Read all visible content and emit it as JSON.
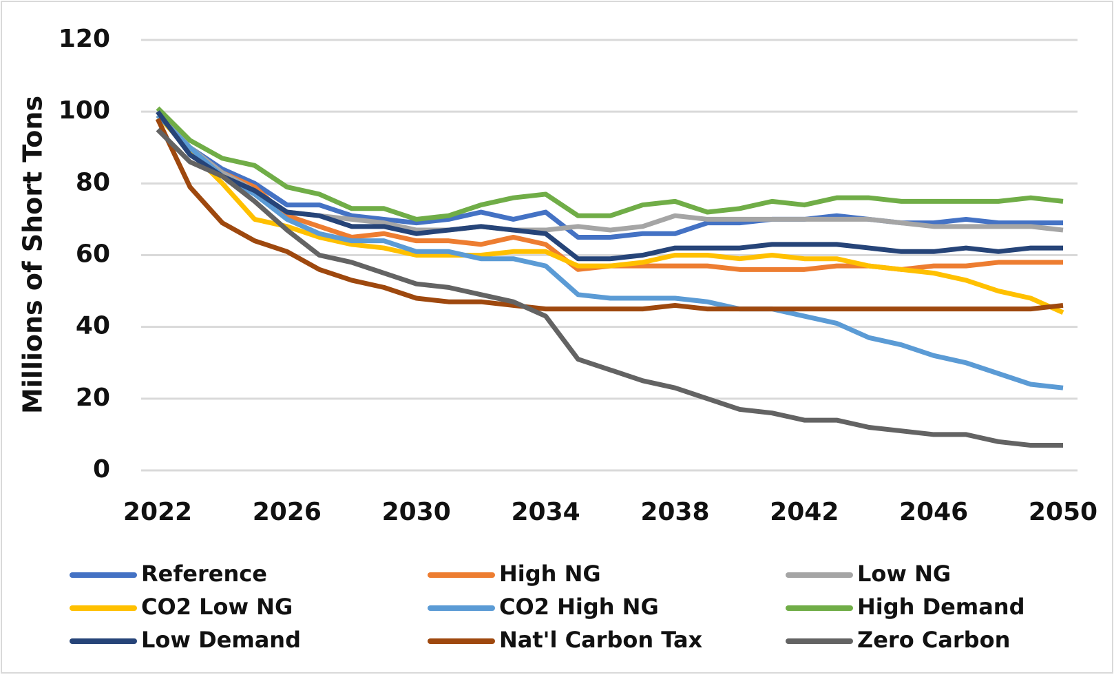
{
  "chart_data": {
    "type": "line",
    "y_label": "Millions of Short Tons",
    "x": [
      2022,
      2023,
      2024,
      2025,
      2026,
      2027,
      2028,
      2029,
      2030,
      2031,
      2032,
      2033,
      2034,
      2035,
      2036,
      2037,
      2038,
      2039,
      2040,
      2041,
      2042,
      2043,
      2044,
      2045,
      2046,
      2047,
      2048,
      2049,
      2050
    ],
    "xlim": [
      2022,
      2050
    ],
    "xticks": [
      2022,
      2026,
      2030,
      2034,
      2038,
      2042,
      2046,
      2050
    ],
    "ylim": [
      0,
      120
    ],
    "yticks": [
      0,
      20,
      40,
      60,
      80,
      100,
      120
    ],
    "grid": true,
    "legend": "bottom",
    "series": [
      {
        "name": "Reference",
        "color": "#4472c4",
        "values": [
          100,
          90,
          84,
          80,
          74,
          74,
          71,
          70,
          69,
          70,
          72,
          70,
          72,
          65,
          65,
          66,
          66,
          69,
          69,
          70,
          70,
          71,
          70,
          69,
          69,
          70,
          69,
          69,
          69
        ]
      },
      {
        "name": "High NG",
        "color": "#ed7d31",
        "values": [
          99,
          90,
          83,
          79,
          71,
          68,
          65,
          66,
          64,
          64,
          63,
          65,
          63,
          56,
          57,
          57,
          57,
          57,
          56,
          56,
          56,
          57,
          57,
          56,
          57,
          57,
          58,
          58,
          58
        ]
      },
      {
        "name": "Low NG",
        "color": "#a5a5a5",
        "values": [
          100,
          90,
          83,
          78,
          72,
          71,
          70,
          69,
          67,
          67,
          68,
          67,
          67,
          68,
          67,
          68,
          71,
          70,
          70,
          70,
          70,
          70,
          70,
          69,
          68,
          68,
          68,
          68,
          67
        ]
      },
      {
        "name": "CO2 Low NG",
        "color": "#ffc000",
        "values": [
          99,
          89,
          80,
          70,
          68,
          65,
          63,
          62,
          60,
          60,
          60,
          61,
          61,
          57,
          57,
          58,
          60,
          60,
          59,
          60,
          59,
          59,
          57,
          56,
          55,
          53,
          50,
          48,
          44
        ]
      },
      {
        "name": "CO2 High NG",
        "color": "#5b9bd5",
        "values": [
          99,
          90,
          82,
          77,
          70,
          66,
          64,
          64,
          61,
          61,
          59,
          59,
          57,
          49,
          48,
          48,
          48,
          47,
          45,
          45,
          43,
          41,
          37,
          35,
          32,
          30,
          27,
          24,
          23
        ]
      },
      {
        "name": "High Demand",
        "color": "#70ad47",
        "values": [
          101,
          92,
          87,
          85,
          79,
          77,
          73,
          73,
          70,
          71,
          74,
          76,
          77,
          71,
          71,
          74,
          75,
          72,
          73,
          75,
          74,
          76,
          76,
          75,
          75,
          75,
          75,
          76,
          75
        ]
      },
      {
        "name": "Low Demand",
        "color": "#264478",
        "values": [
          100,
          88,
          82,
          78,
          72,
          71,
          68,
          68,
          66,
          67,
          68,
          67,
          66,
          59,
          59,
          60,
          62,
          62,
          62,
          63,
          63,
          63,
          62,
          61,
          61,
          62,
          61,
          62,
          62
        ]
      },
      {
        "name": "Nat'l Carbon Tax",
        "color": "#9e480e",
        "values": [
          98,
          79,
          69,
          64,
          61,
          56,
          53,
          51,
          48,
          47,
          47,
          46,
          45,
          45,
          45,
          45,
          46,
          45,
          45,
          45,
          45,
          45,
          45,
          45,
          45,
          45,
          45,
          45,
          46
        ]
      },
      {
        "name": "Zero Carbon",
        "color": "#636363",
        "values": [
          95,
          86,
          82,
          75,
          67,
          60,
          58,
          55,
          52,
          51,
          49,
          47,
          43,
          31,
          28,
          25,
          23,
          20,
          17,
          16,
          14,
          14,
          12,
          11,
          10,
          10,
          8,
          7,
          7
        ]
      }
    ]
  }
}
